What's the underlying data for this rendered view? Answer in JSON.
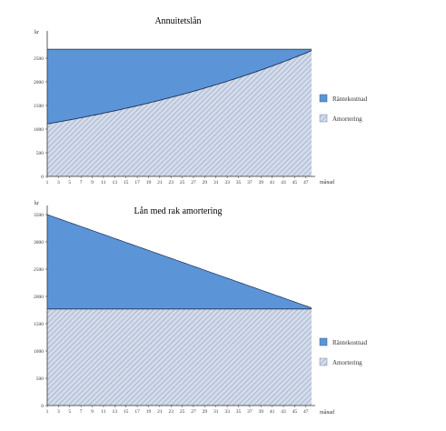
{
  "colors": {
    "interest": "#5b95d8",
    "interest_stroke": "#2d5f9e",
    "amort_bg": "#d4dceb",
    "amort_hatch": "#97a8c4",
    "line": "#1c2e55"
  },
  "chart_data": [
    {
      "type": "area",
      "title": "Annuitetslån",
      "ylabel": "kr",
      "xlabel": "månad",
      "ylim": [
        0,
        3000
      ],
      "yticks": [
        "0",
        "500",
        "1000",
        "1500",
        "2000",
        "2500"
      ],
      "ytick_values": [
        0,
        500,
        1000,
        1500,
        2000,
        2500
      ],
      "xticks": [
        "1",
        "3",
        "5",
        "7",
        "9",
        "11",
        "13",
        "15",
        "17",
        "19",
        "21",
        "23",
        "25",
        "27",
        "29",
        "31",
        "33",
        "35",
        "37",
        "39",
        "41",
        "43",
        "45",
        "47"
      ],
      "x_range": [
        1,
        48
      ],
      "series": [
        {
          "name": "Amortering",
          "values_start": 1110,
          "values_end": 2660,
          "growth": "exponential"
        },
        {
          "name": "Räntekostnad",
          "total": 2690
        }
      ],
      "legend": [
        "Räntekostnad",
        "Amortering"
      ],
      "legend_position": "right"
    },
    {
      "type": "area",
      "title": "Lån med rak amortering",
      "ylabel": "kr",
      "xlabel": "månad",
      "ylim": [
        0,
        3600
      ],
      "yticks": [
        "0",
        "500",
        "1000",
        "1500",
        "2000",
        "2500",
        "3000",
        "3500"
      ],
      "ytick_values": [
        0,
        500,
        1000,
        1500,
        2000,
        2500,
        3000,
        3500
      ],
      "xticks": [
        "1",
        "3",
        "5",
        "7",
        "9",
        "11",
        "13",
        "15",
        "17",
        "19",
        "21",
        "23",
        "25",
        "27",
        "29",
        "31",
        "33",
        "35",
        "37",
        "39",
        "41",
        "43",
        "45",
        "47"
      ],
      "x_range": [
        1,
        48
      ],
      "series": [
        {
          "name": "Amortering",
          "value": 1770
        },
        {
          "name": "Räntekostnad",
          "total_start": 3500,
          "total_end": 1790
        }
      ],
      "legend": [
        "Räntekostnad",
        "Amortering"
      ],
      "legend_position": "right"
    }
  ]
}
